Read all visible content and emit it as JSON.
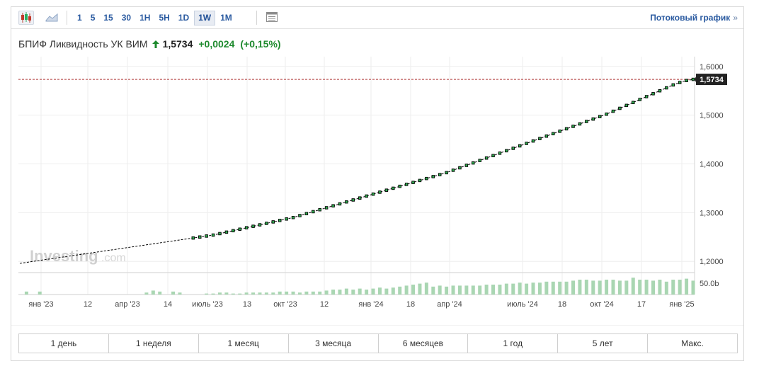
{
  "toolbar": {
    "intervals": [
      "1",
      "5",
      "15",
      "30",
      "1H",
      "5H",
      "1D",
      "1W",
      "1M"
    ],
    "active_interval": "1W",
    "stream_link": "Потоковый график",
    "stream_chevron": "»",
    "icons": [
      "candlestick-icon",
      "area-chart-icon",
      "table-view-icon"
    ]
  },
  "header": {
    "name": "БПИФ Ликвидность УК ВИМ",
    "price": "1,5734",
    "change": "+0,0024",
    "change_pct": "(+0,15%)",
    "up_color": "#1e8a2e"
  },
  "watermark": {
    "brand": "Investing",
    "suffix": ".com"
  },
  "ranges": [
    "1 день",
    "1 неделя",
    "1 месяц",
    "3 месяца",
    "6 месяцев",
    "1 год",
    "5 лет",
    "Макс."
  ],
  "chart_data": {
    "type": "line",
    "series": [
      {
        "values": [
          1.196,
          1.198,
          1.2,
          1.202,
          1.204,
          1.206,
          1.208,
          1.21,
          1.212,
          1.214,
          1.216,
          1.218,
          1.22,
          1.222,
          1.224,
          1.226,
          1.228,
          1.23,
          1.232,
          1.234,
          1.236,
          1.238,
          1.24,
          1.242,
          1.244,
          1.246,
          1.248,
          1.25,
          1.252,
          1.254,
          1.257,
          1.26,
          1.263,
          1.266,
          1.269,
          1.272,
          1.275,
          1.278,
          1.281,
          1.284,
          1.287,
          1.29,
          1.294,
          1.298,
          1.302,
          1.306,
          1.31,
          1.314,
          1.318,
          1.322,
          1.326,
          1.33,
          1.334,
          1.338,
          1.342,
          1.346,
          1.35,
          1.354,
          1.358,
          1.362,
          1.366,
          1.37,
          1.374,
          1.378,
          1.382,
          1.387,
          1.392,
          1.397,
          1.402,
          1.407,
          1.412,
          1.417,
          1.422,
          1.427,
          1.432,
          1.437,
          1.442,
          1.447,
          1.452,
          1.457,
          1.462,
          1.467,
          1.472,
          1.477,
          1.482,
          1.487,
          1.492,
          1.497,
          1.502,
          1.508,
          1.514,
          1.52,
          1.526,
          1.532,
          1.538,
          1.544,
          1.55,
          1.556,
          1.562,
          1.567,
          1.571,
          1.5734
        ]
      }
    ],
    "volume": [
      0,
      3,
      0,
      3,
      0,
      0,
      0,
      0,
      0,
      0,
      0,
      0,
      0,
      0,
      0,
      0,
      0,
      0,
      0,
      2,
      4,
      3,
      0,
      3,
      2,
      0,
      0,
      0,
      1,
      1,
      2,
      2,
      1,
      1,
      2,
      2,
      2,
      2,
      2,
      3,
      3,
      3,
      2,
      3,
      3,
      3,
      4,
      5,
      5,
      6,
      5,
      6,
      5,
      6,
      7,
      6,
      7,
      8,
      9,
      10,
      11,
      12,
      8,
      9,
      8,
      9,
      9,
      9,
      9,
      9,
      10,
      10,
      10,
      11,
      11,
      12,
      11,
      12,
      12,
      13,
      13,
      13,
      13,
      14,
      15,
      15,
      14,
      14,
      15,
      15,
      14,
      14,
      17,
      15,
      15,
      14,
      15,
      13,
      15,
      15,
      16,
      14
    ],
    "x_labels": [
      "янв '23",
      "12",
      "апр '23",
      "14",
      "июль '23",
      "13",
      "окт '23",
      "12",
      "янв '24",
      "18",
      "апр '24",
      "июль '24",
      "18",
      "окт '24",
      "17",
      "янв '25"
    ],
    "y_ticks": [
      "1,6000",
      "1,5000",
      "1,4000",
      "1,3000",
      "1,2000"
    ],
    "y_range": [
      1.1785,
      1.62
    ],
    "volume_label": "50.0b",
    "last_value_label": "1,5734",
    "reference_line": 1.5734,
    "line_color": "#000000",
    "marker_fill": "#2eae4e",
    "volume_color": "#a9d6b2",
    "reference_line_color": "#b03a3a",
    "last_label_bg": "#222222"
  }
}
